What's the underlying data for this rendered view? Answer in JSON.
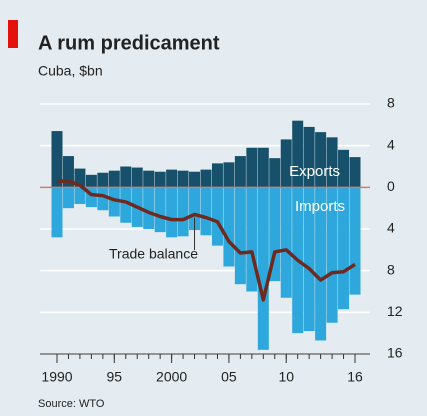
{
  "chart_data": {
    "type": "bar-line",
    "title": "A rum predicament",
    "subtitle": "Cuba, $bn",
    "source": "Source: WTO",
    "x": [
      1990,
      1991,
      1992,
      1993,
      1994,
      1995,
      1996,
      1997,
      1998,
      1999,
      2000,
      2001,
      2002,
      2003,
      2004,
      2005,
      2006,
      2007,
      2008,
      2009,
      2010,
      2011,
      2012,
      2013,
      2014,
      2015,
      2016
    ],
    "xlim": [
      1990,
      2016
    ],
    "xticks": [
      1990,
      {
        "value": 1995,
        "label": "95"
      },
      2000,
      {
        "value": 2005,
        "label": "05"
      },
      {
        "value": 2010,
        "label": "10"
      },
      {
        "value": 2016,
        "label": "16"
      }
    ],
    "ylim": [
      -16,
      8
    ],
    "yticks": [
      8,
      4,
      0,
      {
        "value": -4,
        "label": "4"
      },
      {
        "value": -8,
        "label": "8"
      },
      {
        "value": -12,
        "label": "12"
      },
      {
        "value": -16,
        "label": "16"
      }
    ],
    "grid": true,
    "series": [
      {
        "name": "Exports",
        "type": "bar",
        "color": "#17506a",
        "values": [
          5.4,
          3.0,
          1.8,
          1.2,
          1.4,
          1.6,
          2.0,
          1.9,
          1.6,
          1.5,
          1.7,
          1.6,
          1.5,
          1.7,
          2.3,
          2.4,
          3.0,
          3.8,
          3.8,
          2.8,
          4.6,
          6.4,
          5.8,
          5.3,
          4.8,
          3.6,
          2.9
        ]
      },
      {
        "name": "Imports",
        "type": "bar",
        "color": "#2ea7dc",
        "values": [
          -4.8,
          -2.0,
          -1.6,
          -1.9,
          -2.2,
          -2.8,
          -3.4,
          -3.8,
          -4.0,
          -4.3,
          -4.8,
          -4.7,
          -4.1,
          -4.6,
          -5.6,
          -7.6,
          -9.3,
          -10.0,
          -15.6,
          -9.0,
          -10.6,
          -14.0,
          -13.8,
          -14.7,
          -13.0,
          -11.7,
          -10.3
        ]
      },
      {
        "name": "Trade balance",
        "type": "line",
        "color": "#6e2a1e",
        "values": [
          0.6,
          0.6,
          0.2,
          -0.7,
          -0.8,
          -1.2,
          -1.4,
          -1.9,
          -2.4,
          -2.8,
          -3.1,
          -3.1,
          -2.6,
          -2.9,
          -3.3,
          -5.2,
          -6.3,
          -6.2,
          -10.8,
          -6.2,
          -6.0,
          -7.0,
          -7.8,
          -8.9,
          -8.2,
          -8.1,
          -7.4
        ]
      }
    ]
  }
}
